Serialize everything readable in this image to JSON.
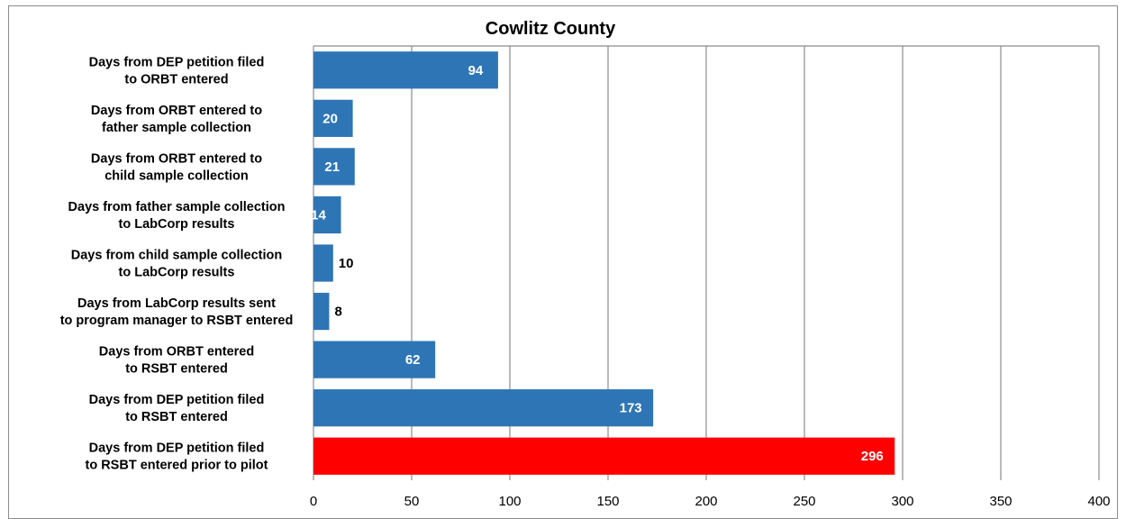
{
  "chart_data": {
    "type": "bar",
    "orientation": "horizontal",
    "title": "Cowlitz County",
    "xlabel": "",
    "ylabel": "",
    "xlim": [
      0,
      400
    ],
    "x_ticks": [
      "0",
      "50",
      "100",
      "150",
      "200",
      "250",
      "300",
      "350",
      "400"
    ],
    "grid": "vertical",
    "legend": "none",
    "categories": [
      [
        "Days from DEP petition filed",
        "to ORBT entered"
      ],
      [
        "Days from ORBT entered to",
        "father sample collection"
      ],
      [
        "Days from ORBT entered to",
        "child sample collection"
      ],
      [
        "Days from father sample collection",
        "to LabCorp results"
      ],
      [
        "Days from child sample collection",
        "to LabCorp results"
      ],
      [
        "Days from LabCorp results sent",
        "to program manager to RSBT entered"
      ],
      [
        "Days from ORBT entered",
        "to RSBT entered"
      ],
      [
        "Days from DEP petition filed",
        "to RSBT entered"
      ],
      [
        "Days from DEP petition filed",
        "to RSBT entered prior to pilot"
      ]
    ],
    "values": [
      94,
      20,
      21,
      14,
      10,
      8,
      62,
      173,
      296
    ],
    "data_labels": [
      "94",
      "20",
      "21",
      "14",
      "10",
      "8",
      "62",
      "173",
      "296"
    ],
    "bar_colors": [
      "#2e75b6",
      "#2e75b6",
      "#2e75b6",
      "#2e75b6",
      "#2e75b6",
      "#2e75b6",
      "#2e75b6",
      "#2e75b6",
      "#ff0000"
    ],
    "gridline_color": "#8c8c8c"
  }
}
